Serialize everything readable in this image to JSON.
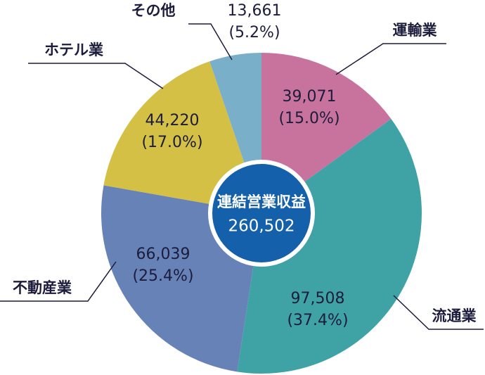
{
  "chart_data": {
    "type": "donut",
    "categories": [
      "運輸業",
      "流通業",
      "不動産業",
      "ホテル業",
      "その他"
    ],
    "values": [
      39071,
      97508,
      66039,
      44220,
      13661
    ],
    "value_labels": [
      "39,071",
      "97,508",
      "66,039",
      "44,220",
      "13,661"
    ],
    "percent_labels": [
      "(15.0%)",
      "(37.4%)",
      "(25.4%)",
      "(17.0%)",
      "(5.2%)"
    ],
    "colors": [
      "#c8739e",
      "#3fa3a6",
      "#6682b7",
      "#d3c044",
      "#7aafc9"
    ],
    "center_title": "連結営業収益",
    "total": {
      "value": 260502,
      "label": "260,502"
    }
  }
}
